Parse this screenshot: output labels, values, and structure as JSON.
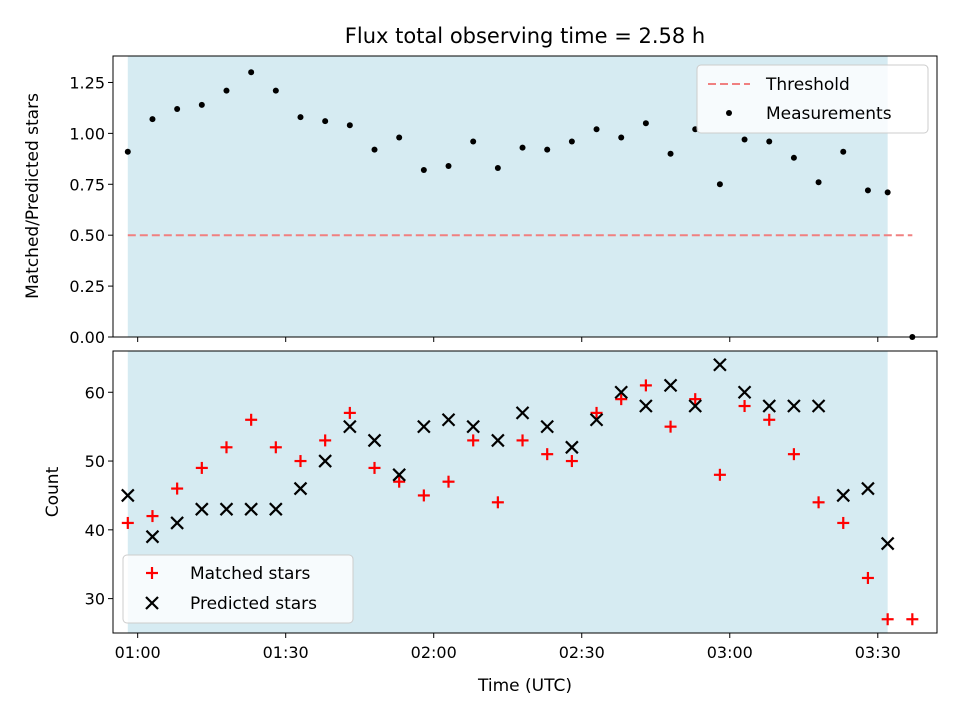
{
  "chart_data": [
    {
      "type": "scatter",
      "title": "Flux total observing time = 2.58 h",
      "xlabel": "",
      "ylabel": "Matched/Predicted stars",
      "xlim": [
        "00:55",
        "03:42"
      ],
      "ylim": [
        0,
        1.38
      ],
      "yticks": [
        {
          "value": 0,
          "label": "0.00"
        },
        {
          "value": 0.25,
          "label": "0.25"
        },
        {
          "value": 0.5,
          "label": "0.50"
        },
        {
          "value": 0.75,
          "label": "0.75"
        },
        {
          "value": 1.0,
          "label": "1.00"
        },
        {
          "value": 1.25,
          "label": "1.25"
        }
      ],
      "xticks": [
        "01:00",
        "01:30",
        "02:00",
        "02:30",
        "03:00",
        "03:30"
      ],
      "observing_window": [
        "00:58",
        "03:32"
      ],
      "legend": {
        "position": "top-right",
        "entries": [
          {
            "key": "threshold",
            "label": "Threshold"
          },
          {
            "key": "measurements",
            "label": "Measurements"
          }
        ]
      },
      "threshold": {
        "value": 0.5,
        "x_range": [
          "00:58",
          "03:37"
        ],
        "color": "#f08080"
      },
      "series": [
        {
          "name": "Measurements",
          "color": "#000000",
          "x": [
            "00:58",
            "01:03",
            "01:08",
            "01:13",
            "01:18",
            "01:23",
            "01:28",
            "01:33",
            "01:38",
            "01:43",
            "01:48",
            "01:53",
            "01:58",
            "02:03",
            "02:08",
            "02:13",
            "02:18",
            "02:23",
            "02:28",
            "02:33",
            "02:38",
            "02:43",
            "02:48",
            "02:53",
            "02:58",
            "03:03",
            "03:08",
            "03:13",
            "03:18",
            "03:23",
            "03:28",
            "03:32",
            "03:37"
          ],
          "y": [
            0.91,
            1.07,
            1.12,
            1.14,
            1.21,
            1.3,
            1.21,
            1.08,
            1.06,
            1.04,
            0.92,
            0.98,
            0.82,
            0.84,
            0.96,
            0.83,
            0.93,
            0.92,
            0.96,
            1.02,
            0.98,
            1.05,
            0.9,
            1.02,
            0.75,
            0.97,
            0.96,
            0.88,
            0.76,
            0.91,
            0.72,
            0.71,
            0.0
          ]
        }
      ]
    },
    {
      "type": "scatter",
      "title": "",
      "xlabel": "Time (UTC)",
      "ylabel": "Count",
      "xlim": [
        "00:55",
        "03:42"
      ],
      "ylim": [
        25,
        66
      ],
      "yticks": [
        {
          "value": 30,
          "label": "30"
        },
        {
          "value": 40,
          "label": "40"
        },
        {
          "value": 50,
          "label": "50"
        },
        {
          "value": 60,
          "label": "60"
        }
      ],
      "xticks": [
        "01:00",
        "01:30",
        "02:00",
        "02:30",
        "03:00",
        "03:30"
      ],
      "observing_window": [
        "00:58",
        "03:32"
      ],
      "legend": {
        "position": "bottom-left",
        "entries": [
          {
            "key": "matched",
            "label": "Matched stars"
          },
          {
            "key": "predicted",
            "label": "Predicted stars"
          }
        ]
      },
      "series": [
        {
          "name": "Matched stars",
          "color": "#ff0000",
          "marker": "plus",
          "x": [
            "00:58",
            "01:03",
            "01:08",
            "01:13",
            "01:18",
            "01:23",
            "01:28",
            "01:33",
            "01:38",
            "01:43",
            "01:48",
            "01:53",
            "01:58",
            "02:03",
            "02:08",
            "02:13",
            "02:18",
            "02:23",
            "02:28",
            "02:33",
            "02:38",
            "02:43",
            "02:48",
            "02:53",
            "02:58",
            "03:03",
            "03:08",
            "03:13",
            "03:18",
            "03:23",
            "03:28",
            "03:32",
            "03:37"
          ],
          "y": [
            41,
            42,
            46,
            49,
            52,
            56,
            52,
            50,
            53,
            57,
            49,
            47,
            45,
            47,
            53,
            44,
            53,
            51,
            50,
            57,
            59,
            61,
            55,
            59,
            48,
            58,
            56,
            51,
            44,
            41,
            33,
            27,
            27
          ]
        },
        {
          "name": "Predicted stars",
          "color": "#000000",
          "marker": "x",
          "x": [
            "00:58",
            "01:03",
            "01:08",
            "01:13",
            "01:18",
            "01:23",
            "01:28",
            "01:33",
            "01:38",
            "01:43",
            "01:48",
            "01:53",
            "01:58",
            "02:03",
            "02:08",
            "02:13",
            "02:18",
            "02:23",
            "02:28",
            "02:33",
            "02:38",
            "02:43",
            "02:48",
            "02:53",
            "02:58",
            "03:03",
            "03:08",
            "03:13",
            "03:18",
            "03:23",
            "03:28",
            "03:32"
          ],
          "y": [
            45,
            39,
            41,
            43,
            43,
            43,
            43,
            46,
            50,
            55,
            53,
            48,
            55,
            56,
            55,
            53,
            57,
            55,
            52,
            56,
            60,
            58,
            61,
            58,
            64,
            60,
            58,
            58,
            58,
            45,
            46,
            38
          ]
        }
      ]
    }
  ],
  "colors": {
    "window": "#add8e6",
    "axis": "#000000"
  }
}
